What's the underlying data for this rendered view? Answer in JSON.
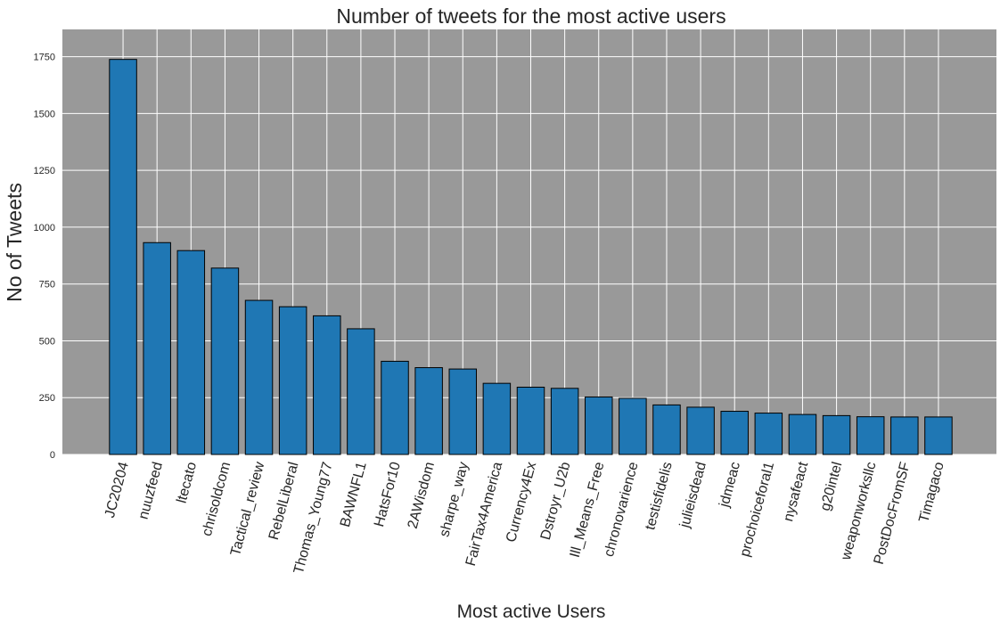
{
  "chart_data": {
    "type": "bar",
    "title": "Number of tweets for the most active users",
    "xlabel": "Most active Users",
    "ylabel": "No of Tweets",
    "categories": [
      "JC20204",
      "nuuzfeed",
      "ltecato",
      "chrisoldcom",
      "Tactical_review",
      "RebelLiberal",
      "Thomas_Young77",
      "BAWNFL1",
      "HatsFor10",
      "2AWisdom",
      "sharpe_way",
      "FairTax4America",
      "Currency4Ex",
      "Dstroyr_U2b",
      "Ill_Means_Free",
      "chronovarience",
      "testisfidelis",
      "julieisdead",
      "jdmeac",
      "prochoiceforal1",
      "nysafeact",
      "g20intel",
      "weaponworksllc",
      "PostDocFromSF",
      "Timagaco"
    ],
    "values": [
      1738,
      932,
      897,
      820,
      678,
      650,
      610,
      553,
      410,
      382,
      376,
      313,
      296,
      291,
      253,
      247,
      218,
      208,
      190,
      182,
      176,
      171,
      166,
      165,
      165
    ],
    "ylim": [
      0,
      1870
    ],
    "yticks": [
      0,
      250,
      500,
      750,
      1000,
      1250,
      1500,
      1750
    ],
    "grid": true,
    "colors": {
      "bar": "#1f77b4",
      "bar_edge": "#000000",
      "plot_background": "#999999",
      "grid": "#ffffff",
      "text": "#262626"
    }
  }
}
